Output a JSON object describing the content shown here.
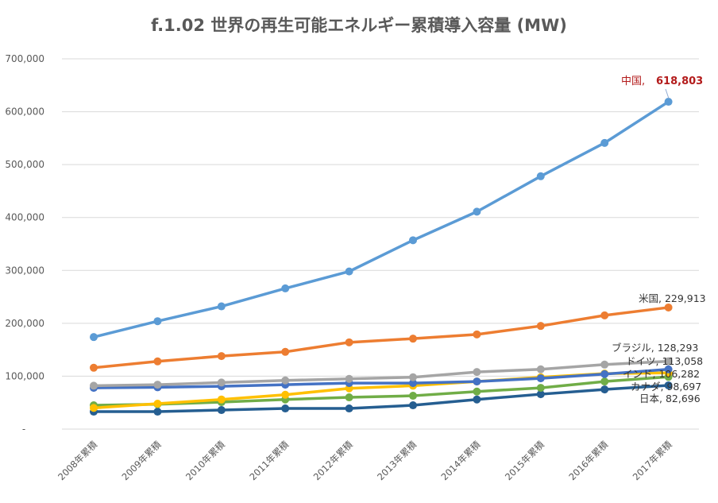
{
  "chart_data": {
    "type": "line",
    "title": "f.1.02  世界の再生可能エネルギー累積導入容量 (MW)",
    "xlabel": "",
    "ylabel": "",
    "categories": [
      "2008年累積",
      "2009年累積",
      "2010年累積",
      "2011年累積",
      "2012年累積",
      "2013年累積",
      "2014年累積",
      "2015年累積",
      "2016年累積",
      "2017年累積"
    ],
    "ylim": [
      0,
      700000
    ],
    "yticks": [
      {
        "value": 0,
        "label": "-"
      },
      {
        "value": 100000,
        "label": "100,000"
      },
      {
        "value": 200000,
        "label": "200,000"
      },
      {
        "value": 300000,
        "label": "300,000"
      },
      {
        "value": 400000,
        "label": "400,000"
      },
      {
        "value": 500000,
        "label": "500,000"
      },
      {
        "value": 600000,
        "label": "600,000"
      },
      {
        "value": 700000,
        "label": "700,000"
      }
    ],
    "grid": true,
    "legend": "none",
    "series": [
      {
        "name": "中国",
        "color": "#5b9bd5",
        "values": [
          174000,
          204000,
          232000,
          266000,
          298000,
          357000,
          411000,
          478000,
          541000,
          618803
        ]
      },
      {
        "name": "米国",
        "color": "#ed7d31",
        "values": [
          116000,
          128000,
          138000,
          146000,
          164000,
          171000,
          179000,
          195000,
          215000,
          229913
        ]
      },
      {
        "name": "ブラジル",
        "color": "#a5a5a5",
        "values": [
          82000,
          84000,
          88000,
          92000,
          95000,
          98000,
          108000,
          113000,
          122000,
          128293
        ]
      },
      {
        "name": "ドイツ",
        "color": "#4472c4",
        "values": [
          78000,
          79000,
          81000,
          84000,
          87000,
          87000,
          90000,
          96000,
          104000,
          113058
        ]
      },
      {
        "name": "インド",
        "color": "#ffc000",
        "values": [
          40000,
          48000,
          56000,
          65000,
          77000,
          82000,
          90000,
          98000,
          105000,
          106282
        ]
      },
      {
        "name": "カナダ",
        "color": "#70ad47",
        "values": [
          45000,
          47000,
          51000,
          56000,
          60000,
          63000,
          71000,
          78000,
          90000,
          98697
        ]
      },
      {
        "name": "日本",
        "color": "#255e91",
        "values": [
          33000,
          33000,
          36000,
          39000,
          39000,
          45000,
          56000,
          66000,
          75000,
          82696
        ]
      }
    ],
    "annotations": [
      {
        "name": "中国",
        "label": "中国,",
        "value_label": "618,803"
      },
      {
        "name": "米国",
        "label": "米国, 229,913"
      },
      {
        "name": "ブラジル",
        "label": "ブラジル, 128,293"
      },
      {
        "name": "ドイツ",
        "label": "ドイツ, 113,058"
      },
      {
        "name": "インド",
        "label": "インド, 106,282"
      },
      {
        "name": "カナダ",
        "label": "カナダ, 98,697"
      },
      {
        "name": "日本",
        "label": "日本,  82,696"
      }
    ]
  }
}
